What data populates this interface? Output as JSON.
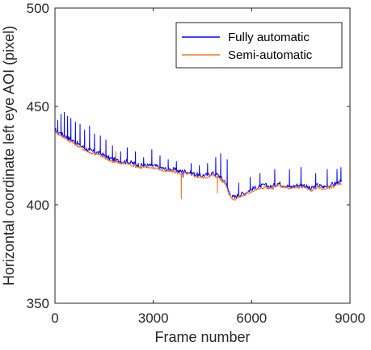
{
  "chart_data": {
    "type": "line",
    "title": "",
    "xlabel": "Frame number",
    "ylabel": "Horizontal coordinate left eye AOI (pixel)",
    "xlim": [
      0,
      9000
    ],
    "ylim": [
      350,
      500
    ],
    "x_ticks": [
      "0",
      "3000",
      "6000",
      "9000"
    ],
    "y_ticks": [
      "350",
      "400",
      "450",
      "500"
    ],
    "grid": false,
    "legend_position": "top-right",
    "series": [
      {
        "name": "Fully automatic",
        "color": "#0000ff",
        "x": [
          0,
          200,
          400,
          600,
          800,
          1000,
          1200,
          1400,
          1600,
          1800,
          2000,
          2200,
          2400,
          2600,
          2800,
          3000,
          3200,
          3400,
          3600,
          3800,
          4000,
          4200,
          4400,
          4600,
          4800,
          5000,
          5100,
          5200,
          5300,
          5400,
          5500,
          5600,
          5800,
          6000,
          6200,
          6400,
          6600,
          6800,
          7000,
          7200,
          7400,
          7600,
          7800,
          8000,
          8200,
          8400,
          8600,
          8750
        ],
        "y": [
          438,
          436,
          434,
          432,
          430,
          428,
          427,
          426,
          424,
          423,
          422,
          422,
          421,
          420,
          420,
          420,
          419,
          418,
          418,
          417,
          417,
          416,
          415,
          415,
          416,
          415,
          413,
          412,
          407,
          404,
          404,
          405,
          406,
          408,
          409,
          410,
          409,
          411,
          410,
          409,
          410,
          410,
          408,
          410,
          409,
          410,
          411,
          412
        ],
        "spikes_x": [
          80,
          180,
          280,
          380,
          480,
          620,
          760,
          900,
          1050,
          1200,
          1380,
          1550,
          1750,
          1850,
          2000,
          2200,
          2450,
          2700,
          2950,
          3200,
          3450,
          3700,
          3900,
          4150,
          4400,
          4650,
          4900,
          5050,
          5250,
          5600,
          5950,
          6250,
          6700,
          7150,
          7500,
          7950,
          8300,
          8600,
          8720
        ],
        "spikes_y": [
          443,
          446,
          447,
          445,
          444,
          442,
          441,
          438,
          440,
          436,
          435,
          433,
          430,
          425,
          427,
          429,
          427,
          424,
          428,
          425,
          423,
          422,
          414,
          421,
          420,
          421,
          424,
          426,
          423,
          411,
          414,
          416,
          418,
          418,
          419,
          416,
          418,
          418,
          419
        ]
      },
      {
        "name": "Semi-automatic",
        "color": "#f07820",
        "x": [
          0,
          200,
          400,
          600,
          800,
          1000,
          1200,
          1400,
          1600,
          1800,
          2000,
          2200,
          2400,
          2600,
          2800,
          3000,
          3200,
          3400,
          3600,
          3800,
          4000,
          4200,
          4400,
          4600,
          4800,
          5000,
          5100,
          5200,
          5300,
          5400,
          5500,
          5600,
          5800,
          6000,
          6200,
          6400,
          6600,
          6800,
          7000,
          7200,
          7400,
          7600,
          7800,
          8000,
          8200,
          8400,
          8600,
          8750
        ],
        "y": [
          437,
          435,
          433,
          431,
          429,
          427,
          426,
          425,
          423,
          422,
          421,
          421,
          420,
          419,
          419,
          419,
          418,
          417,
          417,
          416,
          416,
          415,
          414,
          414,
          415,
          414,
          412,
          411,
          406,
          403,
          403,
          404,
          405,
          407,
          408,
          409,
          408,
          410,
          409,
          408,
          409,
          409,
          407,
          409,
          408,
          409,
          410,
          411
        ],
        "spikes_x": [
          1850,
          3850,
          4950
        ],
        "spikes_y": [
          427,
          403,
          406
        ]
      }
    ]
  }
}
